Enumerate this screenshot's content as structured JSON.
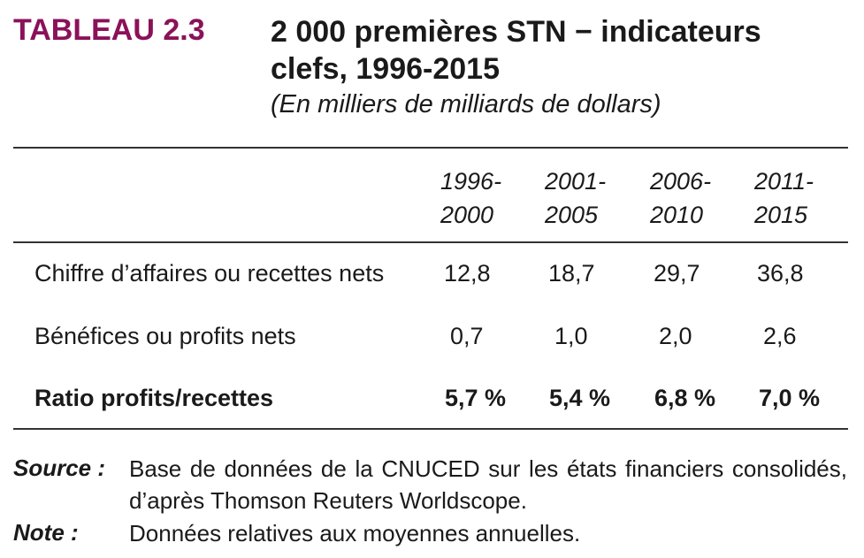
{
  "header": {
    "label": "TABLEAU 2.3",
    "title_line1": "2 000 premières STN − indicateurs",
    "title_line2": "clefs, 1996-2015",
    "subtitle": "(En milliers de milliards de dollars)"
  },
  "table": {
    "columns": [
      {
        "line1": "1996-",
        "line2": "2000"
      },
      {
        "line1": "2001-",
        "line2": "2005"
      },
      {
        "line1": "2006-",
        "line2": "2010"
      },
      {
        "line1": "2011-",
        "line2": "2015"
      }
    ],
    "rows": [
      {
        "label": "Chiffre d’affaires ou recettes nets",
        "values": [
          "12,8",
          "18,7",
          "29,7",
          "36,8"
        ],
        "bold": false
      },
      {
        "label": "Bénéfices ou profits nets",
        "values": [
          "0,7",
          "1,0",
          "2,0",
          "2,6"
        ],
        "bold": false
      },
      {
        "label": "Ratio profits/recettes",
        "values": [
          "5,7 %",
          "5,4 %",
          "6,8 %",
          "7,0 %"
        ],
        "bold": true
      }
    ]
  },
  "footer": {
    "source_key": "Source :",
    "source_text": "Base de données de la CNUCED sur les états financiers consolidés, d’après Thomson Reuters Worldscope.",
    "note_key": "Note :",
    "note_text": "Données relatives aux moyennes annuelles."
  }
}
